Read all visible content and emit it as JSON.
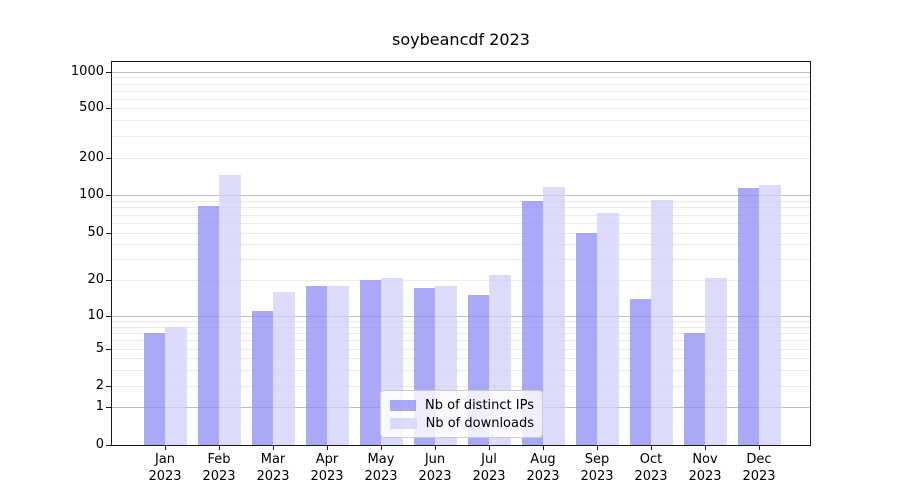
{
  "title": "soybeancdf 2023",
  "chart_data": {
    "type": "bar",
    "title": "soybeancdf 2023",
    "xlabel": "",
    "ylabel": "",
    "yscale": "symlog",
    "grid": true,
    "legend_position": "lower center",
    "yticks": [
      0,
      1,
      2,
      5,
      10,
      20,
      50,
      100,
      200,
      500,
      1000
    ],
    "months": [
      "Jan",
      "Feb",
      "Mar",
      "Apr",
      "May",
      "Jun",
      "Jul",
      "Aug",
      "Sep",
      "Oct",
      "Nov",
      "Dec"
    ],
    "year": "2023",
    "categories": [
      "Jan 2023",
      "Feb 2023",
      "Mar 2023",
      "Apr 2023",
      "May 2023",
      "Jun 2023",
      "Jul 2023",
      "Aug 2023",
      "Sep 2023",
      "Oct 2023",
      "Nov 2023",
      "Dec 2023"
    ],
    "series": [
      {
        "name": "Nb of distinct IPs",
        "color": "#8c8cf4",
        "values": [
          7,
          82,
          11,
          18,
          20,
          17,
          15,
          90,
          50,
          14,
          7,
          115
        ]
      },
      {
        "name": "Nb of downloads",
        "color": "#d0d0f8",
        "values": [
          8,
          145,
          16,
          18,
          21,
          18,
          22,
          117,
          72,
          92,
          21,
          120
        ]
      }
    ]
  },
  "colors": {
    "distinct_ips_effective": "#a9a9f7",
    "downloads_effective": "#dcdcfa",
    "major_grid": "#bdbdbd",
    "minor_grid": "#ebebeb",
    "spine": "#1a1a1a"
  }
}
